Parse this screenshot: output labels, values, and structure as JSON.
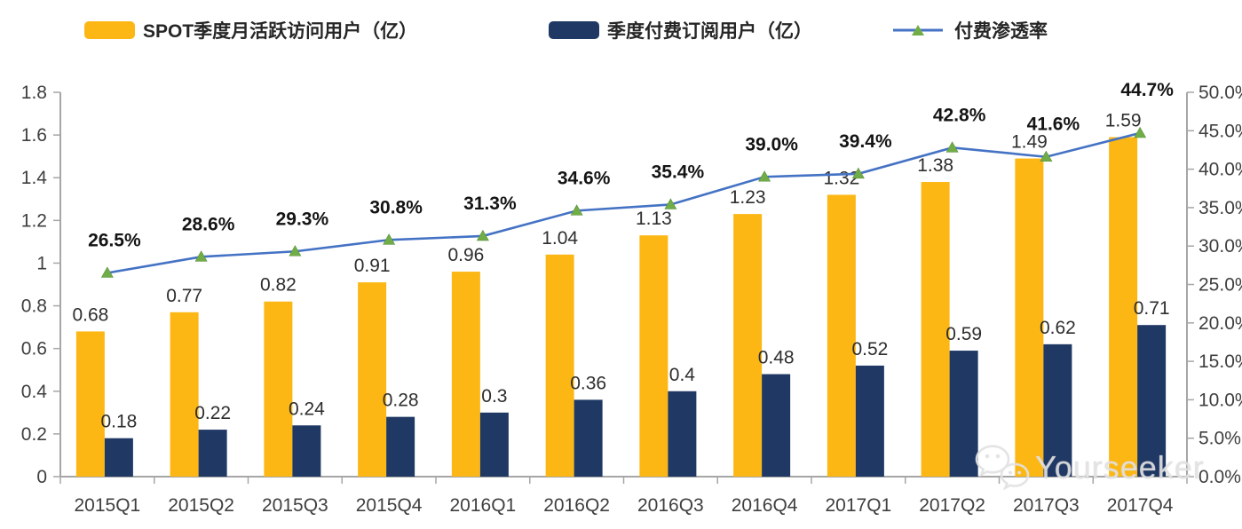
{
  "legend": {
    "items": [
      {
        "label": "SPOT季度月活跃访问用户（亿）",
        "marker": "bar-swatch"
      },
      {
        "label": "季度付费订阅用户（亿）",
        "marker": "bar-swatch"
      },
      {
        "label": "付费渗透率",
        "marker": "line-triangle"
      }
    ]
  },
  "watermark": {
    "text": "Yourseeker",
    "icon": "wechat-icon"
  },
  "colors": {
    "mau_bar": "#FCB714",
    "subscriber_bar": "#1F3864",
    "penetration_line": "#4472C4",
    "penetration_marker": "#70AD47",
    "axis": "#A6A6A6",
    "label_text": "#2E2E2E"
  },
  "chart_data": {
    "type": "combo",
    "categories": [
      "2015Q1",
      "2015Q2",
      "2015Q3",
      "2015Q4",
      "2016Q1",
      "2016Q2",
      "2016Q3",
      "2016Q4",
      "2017Q1",
      "2017Q2",
      "2017Q3",
      "2017Q4"
    ],
    "series": [
      {
        "name": "SPOT季度月活跃访问用户（亿）",
        "type": "bar",
        "axis": "left",
        "color": "#FCB714",
        "values": [
          0.68,
          0.77,
          0.82,
          0.91,
          0.96,
          1.04,
          1.13,
          1.23,
          1.32,
          1.38,
          1.49,
          1.59
        ],
        "labels": [
          "0.68",
          "0.77",
          "0.82",
          "0.91",
          "0.96",
          "1.04",
          "1.13",
          "1.23",
          "1.32",
          "1.38",
          "1.49",
          "1.59"
        ]
      },
      {
        "name": "季度付费订阅用户（亿）",
        "type": "bar",
        "axis": "left",
        "color": "#1F3864",
        "values": [
          0.18,
          0.22,
          0.24,
          0.28,
          0.3,
          0.36,
          0.4,
          0.48,
          0.52,
          0.59,
          0.62,
          0.71
        ],
        "labels": [
          "0.18",
          "0.22",
          "0.24",
          "0.28",
          "0.3",
          "0.36",
          "0.4",
          "0.48",
          "0.52",
          "0.59",
          "0.62",
          "0.71"
        ]
      },
      {
        "name": "付费渗透率",
        "type": "line",
        "axis": "right",
        "color": "#4472C4",
        "marker": "triangle",
        "marker_color": "#70AD47",
        "values": [
          26.5,
          28.6,
          29.3,
          30.8,
          31.3,
          34.6,
          35.4,
          39.0,
          39.4,
          42.8,
          41.6,
          44.7
        ],
        "labels": [
          "26.5%",
          "28.6%",
          "29.3%",
          "30.8%",
          "31.3%",
          "34.6%",
          "35.4%",
          "39.0%",
          "39.4%",
          "42.8%",
          "41.6%",
          "44.7%"
        ]
      }
    ],
    "left_axis": {
      "min": 0,
      "max": 1.8,
      "step": 0.2,
      "tick_labels": [
        "0",
        "0.2",
        "0.4",
        "0.6",
        "0.8",
        "1",
        "1.2",
        "1.4",
        "1.6",
        "1.8"
      ]
    },
    "right_axis": {
      "min": 0,
      "max": 50,
      "step": 5,
      "tick_labels": [
        "0.0%",
        "5.0%",
        "10.0%",
        "15.0%",
        "20.0%",
        "25.0%",
        "30.0%",
        "35.0%",
        "40.0%",
        "45.0%",
        "50.0%"
      ]
    },
    "grid": false,
    "legend_position": "top"
  }
}
